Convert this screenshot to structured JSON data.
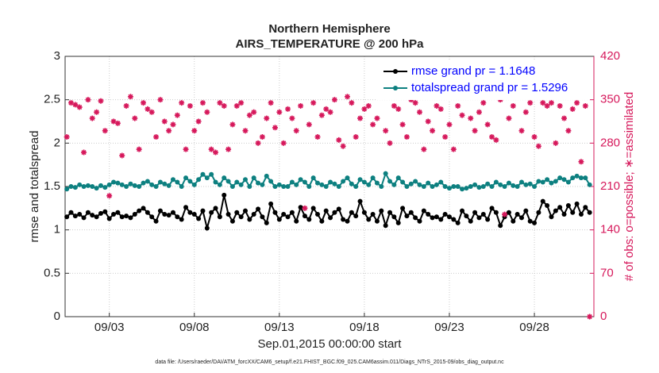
{
  "chart_data": {
    "type": "line",
    "title": "Northern Hemisphere",
    "subtitle": "AIRS_TEMPERATURE @ 200 hPa",
    "xlabel": "Sep.01,2015 00:00:00 start",
    "ylabel": "rmse and totalspread",
    "y2label": "# of obs: o=possible; ∗=assimilated",
    "footnote": "data file: /Users/raeder/DAI/ATM_forcXX/CAM6_setup/f.e21.FHIST_BGC.f09_025.CAM6assim.011/Diags_NTrS_2015-09/obs_diag_output.nc",
    "xlim": [
      -0.6,
      30.5
    ],
    "xticks": [
      {
        "value": 2,
        "label": "09/03"
      },
      {
        "value": 7,
        "label": "09/08"
      },
      {
        "value": 12,
        "label": "09/13"
      },
      {
        "value": 17,
        "label": "09/18"
      },
      {
        "value": 22,
        "label": "09/23"
      },
      {
        "value": 27,
        "label": "09/28"
      }
    ],
    "ylim": [
      0,
      3
    ],
    "yticks": [
      0,
      0.5,
      1,
      1.5,
      2,
      2.5,
      3
    ],
    "y2lim": [
      0,
      420
    ],
    "y2ticks": [
      0,
      70,
      140,
      210,
      280,
      350,
      420
    ],
    "grid": true,
    "legend": "upper right",
    "x": [
      -0.5,
      -0.25,
      0,
      0.25,
      0.5,
      0.75,
      1,
      1.25,
      1.5,
      1.75,
      2,
      2.25,
      2.5,
      2.75,
      3,
      3.25,
      3.5,
      3.75,
      4,
      4.25,
      4.5,
      4.75,
      5,
      5.25,
      5.5,
      5.75,
      6,
      6.25,
      6.5,
      6.75,
      7,
      7.25,
      7.5,
      7.75,
      8,
      8.25,
      8.5,
      8.75,
      9,
      9.25,
      9.5,
      9.75,
      10,
      10.25,
      10.5,
      10.75,
      11,
      11.25,
      11.5,
      11.75,
      12,
      12.25,
      12.5,
      12.75,
      13,
      13.25,
      13.5,
      13.75,
      14,
      14.25,
      14.5,
      14.75,
      15,
      15.25,
      15.5,
      15.75,
      16,
      16.25,
      16.5,
      16.75,
      17,
      17.25,
      17.5,
      17.75,
      18,
      18.25,
      18.5,
      18.75,
      19,
      19.25,
      19.5,
      19.75,
      20,
      20.25,
      20.5,
      20.75,
      21,
      21.25,
      21.5,
      21.75,
      22,
      22.25,
      22.5,
      22.75,
      23,
      23.25,
      23.5,
      23.75,
      24,
      24.25,
      24.5,
      24.75,
      25,
      25.25,
      25.5,
      25.75,
      26,
      26.25,
      26.5,
      26.75,
      27,
      27.25,
      27.5,
      27.75,
      28,
      28.25,
      28.5,
      28.75,
      29,
      29.25,
      29.5,
      29.75,
      30,
      30.25
    ],
    "series": [
      {
        "name": "rmse grand pr = 1.1648",
        "color": "#000000",
        "values": [
          1.15,
          1.2,
          1.16,
          1.18,
          1.14,
          1.2,
          1.17,
          1.15,
          1.19,
          1.21,
          1.13,
          1.18,
          1.2,
          1.15,
          1.16,
          1.14,
          1.18,
          1.22,
          1.25,
          1.2,
          1.15,
          1.1,
          1.22,
          1.18,
          1.17,
          1.2,
          1.15,
          1.12,
          1.26,
          1.2,
          1.18,
          1.13,
          1.22,
          1.02,
          1.2,
          1.25,
          1.15,
          1.4,
          1.18,
          1.1,
          1.2,
          1.15,
          1.22,
          1.12,
          1.18,
          1.24,
          1.15,
          1.08,
          1.3,
          1.2,
          1.12,
          1.18,
          1.15,
          1.2,
          1.1,
          1.26,
          1.16,
          1.12,
          1.25,
          1.18,
          1.1,
          1.22,
          1.14,
          1.2,
          1.24,
          1.12,
          1.1,
          1.2,
          1.16,
          1.33,
          1.2,
          1.12,
          1.18,
          1.1,
          1.22,
          1.05,
          1.2,
          1.15,
          1.08,
          1.25,
          1.16,
          1.2,
          1.14,
          1.1,
          1.22,
          1.18,
          1.14,
          1.15,
          1.12,
          1.18,
          1.15,
          1.12,
          1.08,
          1.22,
          1.16,
          1.1,
          1.2,
          1.14,
          1.18,
          1.12,
          1.25,
          1.2,
          1.05,
          1.15,
          1.2,
          1.1,
          1.18,
          1.14,
          1.22,
          1.1,
          1.08,
          1.2,
          1.33,
          1.28,
          1.15,
          1.22,
          1.26,
          1.18,
          1.28,
          1.2,
          1.3,
          1.18,
          1.26,
          1.2
        ]
      },
      {
        "name": "totalspread grand pr = 1.5296",
        "color": "#0d8080",
        "values": [
          1.47,
          1.5,
          1.49,
          1.52,
          1.5,
          1.51,
          1.5,
          1.48,
          1.51,
          1.49,
          1.52,
          1.55,
          1.54,
          1.52,
          1.5,
          1.53,
          1.51,
          1.5,
          1.54,
          1.56,
          1.52,
          1.5,
          1.55,
          1.53,
          1.51,
          1.58,
          1.55,
          1.5,
          1.6,
          1.56,
          1.52,
          1.58,
          1.64,
          1.6,
          1.64,
          1.55,
          1.52,
          1.6,
          1.56,
          1.5,
          1.55,
          1.52,
          1.58,
          1.5,
          1.6,
          1.54,
          1.52,
          1.62,
          1.56,
          1.5,
          1.52,
          1.5,
          1.5,
          1.55,
          1.52,
          1.58,
          1.55,
          1.5,
          1.6,
          1.54,
          1.52,
          1.5,
          1.55,
          1.53,
          1.5,
          1.56,
          1.6,
          1.53,
          1.5,
          1.58,
          1.55,
          1.52,
          1.6,
          1.54,
          1.5,
          1.65,
          1.56,
          1.52,
          1.6,
          1.55,
          1.5,
          1.53,
          1.56,
          1.52,
          1.5,
          1.54,
          1.5,
          1.52,
          1.55,
          1.5,
          1.48,
          1.5,
          1.5,
          1.47,
          1.48,
          1.5,
          1.52,
          1.49,
          1.5,
          1.53,
          1.5,
          1.55,
          1.52,
          1.5,
          1.54,
          1.51,
          1.5,
          1.55,
          1.52,
          1.53,
          1.5,
          1.56,
          1.55,
          1.58,
          1.54,
          1.56,
          1.6,
          1.58,
          1.55,
          1.6,
          1.62,
          1.6,
          1.6,
          1.52
        ]
      },
      {
        "color": "#d6185b",
        "axis": "y2",
        "marker": "asterisk",
        "values": [
          290,
          345,
          342,
          338,
          265,
          350,
          320,
          330,
          348,
          300,
          195,
          315,
          312,
          260,
          340,
          355,
          320,
          270,
          345,
          335,
          330,
          290,
          350,
          315,
          300,
          310,
          325,
          345,
          270,
          340,
          300,
          315,
          345,
          330,
          270,
          265,
          345,
          340,
          270,
          310,
          340,
          345,
          300,
          325,
          330,
          280,
          290,
          320,
          345,
          305,
          330,
          280,
          335,
          320,
          300,
          340,
          175,
          310,
          345,
          290,
          325,
          335,
          330,
          350,
          285,
          275,
          355,
          345,
          290,
          320,
          335,
          340,
          310,
          320,
          355,
          300,
          280,
          340,
          335,
          310,
          290,
          350,
          345,
          330,
          270,
          315,
          300,
          340,
          335,
          290,
          310,
          270,
          340,
          325,
          355,
          320,
          300,
          330,
          345,
          310,
          290,
          285,
          350,
          165,
          320,
          340,
          355,
          300,
          330,
          345,
          290,
          275,
          345,
          340,
          345,
          280,
          340,
          320,
          300,
          335,
          345,
          250,
          340,
          0
        ]
      }
    ]
  }
}
